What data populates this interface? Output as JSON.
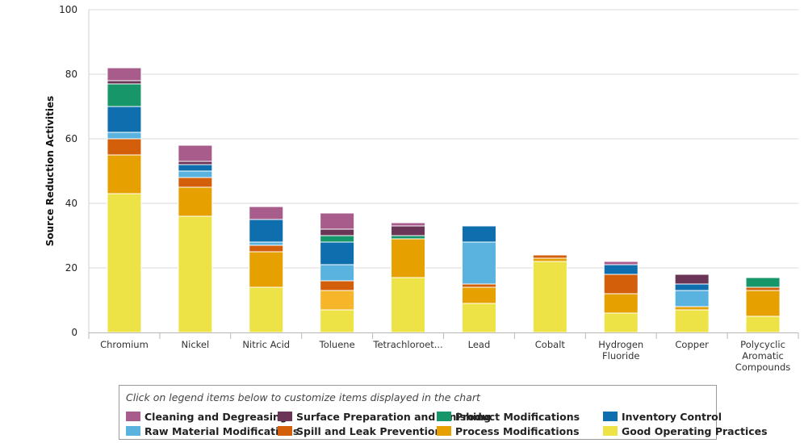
{
  "chart_data": {
    "type": "bar",
    "stacked": true,
    "ylabel": "Source Reduction Activities",
    "xlabel": "",
    "ylim": [
      0,
      100
    ],
    "yticks": [
      0,
      20,
      40,
      60,
      80,
      100
    ],
    "grid": true,
    "legend_position": "bottom",
    "categories": [
      [
        "Chromium"
      ],
      [
        "Nickel"
      ],
      [
        "Nitric Acid"
      ],
      [
        "Toluene"
      ],
      [
        "Tetrachloroet..."
      ],
      [
        "Lead"
      ],
      [
        "Cobalt"
      ],
      [
        "Hydrogen",
        "Fluoride"
      ],
      [
        "Copper"
      ],
      [
        "Polycyclic",
        "Aromatic",
        "Compounds"
      ]
    ],
    "series": [
      {
        "name": "Good Operating Practices",
        "color": "#ede347",
        "values": [
          43,
          36,
          14,
          7,
          17,
          9,
          22,
          6,
          7,
          5
        ]
      },
      {
        "name": "Process Modifications",
        "color": "#e6a000",
        "values": [
          12,
          9,
          11,
          6,
          12,
          5,
          1,
          6,
          1,
          8
        ]
      },
      {
        "name": "Spill and Leak Prevention",
        "color": "#d35f0a",
        "values": [
          5,
          3,
          2,
          3,
          0,
          1,
          1,
          6,
          0,
          1
        ]
      },
      {
        "name": "Raw Material Modifications",
        "color": "#5ab3df",
        "values": [
          2,
          2,
          1,
          5,
          0,
          13,
          0,
          0,
          5,
          0
        ]
      },
      {
        "name": "Inventory Control",
        "color": "#0f6fae",
        "values": [
          8,
          2,
          7,
          7,
          0,
          5,
          0,
          3,
          2,
          0
        ]
      },
      {
        "name": "Product Modifications",
        "color": "#17966a",
        "values": [
          7,
          0,
          0,
          2,
          1,
          0,
          0,
          0,
          0,
          3
        ]
      },
      {
        "name": "Surface Preparation and Finishing",
        "color": "#6a3557",
        "values": [
          1,
          1,
          0,
          2,
          3,
          0,
          0,
          0,
          3,
          0
        ]
      },
      {
        "name": "Cleaning and Degreasing",
        "color": "#a85c8c",
        "values": [
          4,
          5,
          4,
          5,
          1,
          0,
          0,
          1,
          0,
          0
        ]
      }
    ],
    "highlight_overrides": [
      {
        "category_index": 3,
        "series": "Process Modifications",
        "color": "#f7b52a"
      }
    ]
  },
  "legend": {
    "hint": "Click on legend items below to customize items displayed in the chart",
    "items": [
      {
        "label": "Cleaning and Degreasing",
        "color": "#a85c8c"
      },
      {
        "label": "Surface Preparation and Finishing",
        "color": "#6a3557"
      },
      {
        "label": "Product Modifications",
        "color": "#17966a"
      },
      {
        "label": "Inventory Control",
        "color": "#0f6fae"
      },
      {
        "label": "Raw Material Modifications",
        "color": "#5ab3df"
      },
      {
        "label": "Spill and Leak Prevention",
        "color": "#d35f0a"
      },
      {
        "label": "Process Modifications",
        "color": "#e6a000"
      },
      {
        "label": "Good Operating Practices",
        "color": "#ede347"
      }
    ]
  }
}
